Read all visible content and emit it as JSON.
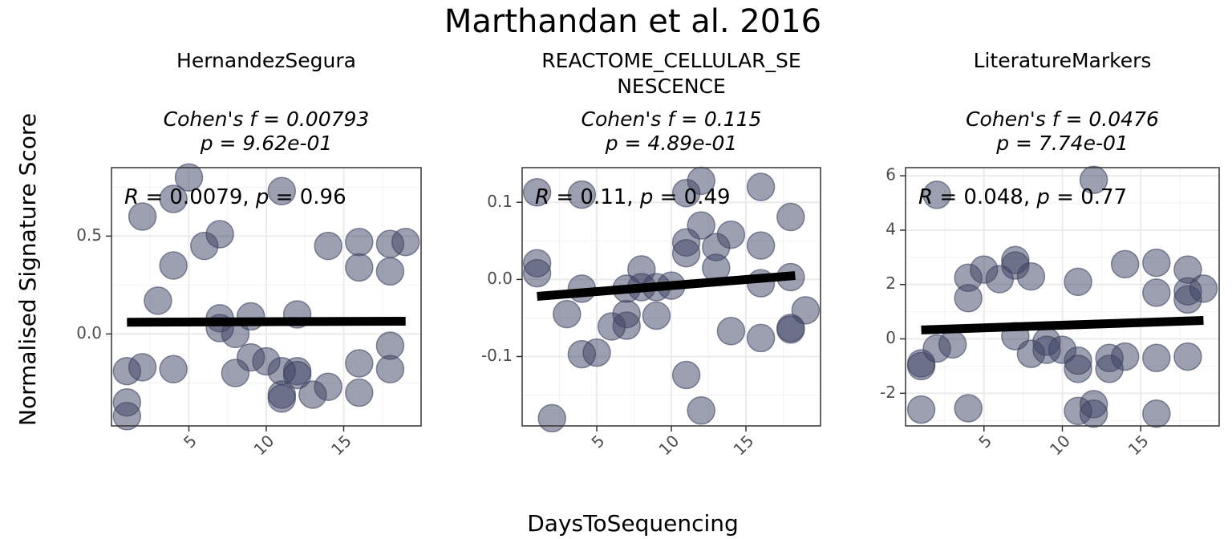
{
  "chart_data": {
    "type": "scatter",
    "title": "Marthandan et al. 2016",
    "xlabel": "DaysToSequencing",
    "ylabel": "Normalised Signature Score",
    "grid": true,
    "legend": "none",
    "point_color": "#3b4261",
    "point_opacity": 0.5,
    "line_color": "#000000",
    "panels": [
      {
        "title": [
          "HernandezSegura"
        ],
        "stats": [
          "Cohen's f = 0.00793",
          "p = 9.62e-01"
        ],
        "corr": {
          "r_label": "R",
          "r_value": "0.0079",
          "p_label": "p",
          "p_value": "0.96"
        },
        "xlim": [
          0,
          20
        ],
        "ylim": [
          -0.47,
          0.85
        ],
        "xticks": [
          {
            "v": 5,
            "label": "5"
          },
          {
            "v": 10,
            "label": "10"
          },
          {
            "v": 15,
            "label": "15"
          }
        ],
        "yticks": [
          {
            "v": 0,
            "label": "0.0"
          },
          {
            "v": 0.5,
            "label": "0.5"
          }
        ],
        "fit": {
          "x": [
            1,
            19
          ],
          "y": [
            0.06,
            0.065
          ]
        },
        "points": [
          [
            1,
            -0.19
          ],
          [
            1,
            -0.35
          ],
          [
            1,
            -0.42
          ],
          [
            2,
            0.6
          ],
          [
            2,
            -0.17
          ],
          [
            3,
            0.17
          ],
          [
            4,
            0.69
          ],
          [
            4,
            0.35
          ],
          [
            4,
            -0.18
          ],
          [
            5,
            0.8
          ],
          [
            6,
            0.45
          ],
          [
            7,
            0.51
          ],
          [
            7,
            0.08
          ],
          [
            7,
            0.03
          ],
          [
            8,
            0.0
          ],
          [
            8,
            -0.2
          ],
          [
            9,
            0.09
          ],
          [
            9,
            -0.12
          ],
          [
            10,
            -0.14
          ],
          [
            11,
            0.73
          ],
          [
            11,
            -0.19
          ],
          [
            11,
            -0.31
          ],
          [
            11,
            -0.33
          ],
          [
            12,
            0.1
          ],
          [
            12,
            -0.19
          ],
          [
            12,
            -0.21
          ],
          [
            13,
            -0.31
          ],
          [
            14,
            0.45
          ],
          [
            14,
            -0.27
          ],
          [
            16,
            0.47
          ],
          [
            16,
            0.34
          ],
          [
            16,
            -0.15
          ],
          [
            16,
            -0.3
          ],
          [
            18,
            0.46
          ],
          [
            18,
            0.32
          ],
          [
            18,
            -0.06
          ],
          [
            18,
            -0.18
          ],
          [
            19,
            0.47
          ]
        ]
      },
      {
        "title": [
          "REACTOME_CELLULAR_SE",
          "NESCENCE"
        ],
        "stats": [
          "Cohen's f = 0.115",
          "p = 4.89e-01"
        ],
        "corr": {
          "r_label": "R",
          "r_value": "0.11",
          "p_label": "p",
          "p_value": "0.49"
        },
        "xlim": [
          0,
          20
        ],
        "ylim": [
          -0.19,
          0.145
        ],
        "xticks": [
          {
            "v": 5,
            "label": "5"
          },
          {
            "v": 10,
            "label": "10"
          },
          {
            "v": 15,
            "label": "15"
          }
        ],
        "yticks": [
          {
            "v": -0.1,
            "label": "-0.1"
          },
          {
            "v": 0,
            "label": "0.0"
          },
          {
            "v": 0.1,
            "label": "0.1"
          }
        ],
        "fit": {
          "x": [
            1,
            18.3
          ],
          "y": [
            -0.022,
            0.005
          ]
        },
        "points": [
          [
            1,
            0.113
          ],
          [
            1,
            0.021
          ],
          [
            1,
            0.008
          ],
          [
            2,
            -0.18
          ],
          [
            3,
            -0.045
          ],
          [
            4,
            0.11
          ],
          [
            4,
            -0.012
          ],
          [
            4,
            -0.097
          ],
          [
            5,
            -0.095
          ],
          [
            6,
            -0.061
          ],
          [
            7,
            -0.012
          ],
          [
            7,
            -0.045
          ],
          [
            7,
            -0.06
          ],
          [
            8,
            0.013
          ],
          [
            8,
            -0.01
          ],
          [
            9,
            -0.01
          ],
          [
            9,
            -0.047
          ],
          [
            10,
            -0.008
          ],
          [
            11,
            0.112
          ],
          [
            11,
            0.048
          ],
          [
            11,
            0.034
          ],
          [
            11,
            -0.124
          ],
          [
            12,
            0.128
          ],
          [
            12,
            0.07
          ],
          [
            12,
            -0.17
          ],
          [
            13,
            0.042
          ],
          [
            13,
            0.015
          ],
          [
            14,
            0.058
          ],
          [
            14,
            -0.067
          ],
          [
            16,
            0.12
          ],
          [
            16,
            0.044
          ],
          [
            16,
            -0.005
          ],
          [
            16,
            -0.076
          ],
          [
            18,
            0.081
          ],
          [
            18,
            0.003
          ],
          [
            18,
            -0.063
          ],
          [
            18,
            -0.065
          ],
          [
            19,
            -0.04
          ]
        ]
      },
      {
        "title": [
          "LiteratureMarkers"
        ],
        "stats": [
          "Cohen's f = 0.0476",
          "p = 7.74e-01"
        ],
        "corr": {
          "r_label": "R",
          "r_value": "0.048",
          "p_label": "p",
          "p_value": "0.77"
        },
        "xlim": [
          0,
          20
        ],
        "ylim": [
          -3.2,
          6.3
        ],
        "xticks": [
          {
            "v": 5,
            "label": "5"
          },
          {
            "v": 10,
            "label": "10"
          },
          {
            "v": 15,
            "label": "15"
          }
        ],
        "yticks": [
          {
            "v": -2,
            "label": "-2"
          },
          {
            "v": 0,
            "label": "0"
          },
          {
            "v": 2,
            "label": "2"
          },
          {
            "v": 4,
            "label": "4"
          },
          {
            "v": 6,
            "label": "6"
          }
        ],
        "fit": {
          "x": [
            1,
            19
          ],
          "y": [
            0.33,
            0.68
          ]
        },
        "points": [
          [
            1,
            -0.9
          ],
          [
            1,
            -1.0
          ],
          [
            1,
            -2.6
          ],
          [
            2,
            5.3
          ],
          [
            2,
            -0.35
          ],
          [
            3,
            -0.2
          ],
          [
            4,
            2.25
          ],
          [
            4,
            1.5
          ],
          [
            4,
            -2.55
          ],
          [
            5,
            2.55
          ],
          [
            6,
            2.2
          ],
          [
            7,
            2.9
          ],
          [
            7,
            2.7
          ],
          [
            7,
            0.1
          ],
          [
            8,
            2.3
          ],
          [
            8,
            -0.55
          ],
          [
            9,
            -0.1
          ],
          [
            9,
            -0.4
          ],
          [
            10,
            -0.4
          ],
          [
            11,
            2.1
          ],
          [
            11,
            -0.8
          ],
          [
            11,
            -1.1
          ],
          [
            11,
            -2.65
          ],
          [
            12,
            5.85
          ],
          [
            12,
            -2.4
          ],
          [
            12,
            -2.75
          ],
          [
            13,
            -0.7
          ],
          [
            13,
            -1.1
          ],
          [
            14,
            2.75
          ],
          [
            14,
            -0.65
          ],
          [
            16,
            2.8
          ],
          [
            16,
            1.7
          ],
          [
            16,
            -0.7
          ],
          [
            16,
            -2.75
          ],
          [
            18,
            2.55
          ],
          [
            18,
            1.75
          ],
          [
            18,
            1.45
          ],
          [
            18,
            -0.65
          ],
          [
            19,
            1.85
          ]
        ]
      }
    ]
  }
}
